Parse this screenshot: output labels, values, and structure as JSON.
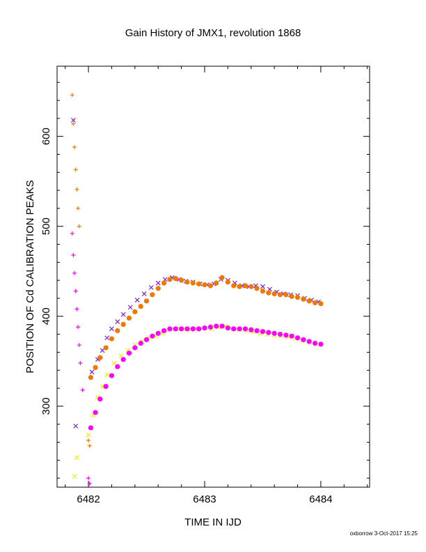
{
  "chart_data": {
    "type": "scatter",
    "title": "Gain History of JMX1, revolution 1868",
    "xlabel": "TIME IN IJD",
    "ylabel": "POSITION OF Cd CALIBRATION PEAKS",
    "xlim": [
      6481.73,
      6484.42
    ],
    "ylim": [
      210,
      678
    ],
    "x_ticks": [
      6482,
      6483,
      6484
    ],
    "y_ticks": [
      300,
      400,
      500,
      600
    ],
    "x_tick_labels": [
      "6482",
      "6483",
      "6484"
    ],
    "y_tick_labels": [
      "300",
      "400",
      "500",
      "600"
    ],
    "minor_ticks": true,
    "grid": false,
    "legend": "none",
    "footer": "oxborrow  3-Oct-2017 15:25",
    "colors": {
      "purple_scatter": "#7a1fd6",
      "orange_fit": "#f07800",
      "yellow_scatter": "#f0f000",
      "magenta_fit": "#ff00ff",
      "axes": "#000000"
    },
    "series": [
      {
        "marker": "x",
        "color": "#7a1fd6",
        "x": [
          6481.87,
          6481.89,
          6482.03,
          6482.08,
          6482.12,
          6482.16,
          6482.2,
          6482.25,
          6482.3,
          6482.36,
          6482.42,
          6482.48,
          6482.54,
          6482.6,
          6482.66,
          6482.72,
          6482.78,
          6482.84,
          6482.9,
          6482.96,
          6483.02,
          6483.08,
          6483.14,
          6483.2,
          6483.26,
          6483.32,
          6483.38,
          6483.44,
          6483.5,
          6483.56,
          6483.62,
          6483.68,
          6483.74,
          6483.8,
          6483.86,
          6483.92,
          6483.98
        ],
        "y": [
          618,
          278,
          338,
          352,
          362,
          376,
          386,
          394,
          402,
          410,
          418,
          425,
          432,
          437,
          441,
          443,
          441,
          439,
          438,
          436,
          435,
          436,
          441,
          440,
          437,
          434,
          433,
          434,
          433,
          430,
          427,
          425,
          424,
          423,
          420,
          418,
          416
        ]
      },
      {
        "marker": "+",
        "color": "#f07800",
        "x": [
          6481.86,
          6481.87,
          6481.88,
          6481.89,
          6481.9,
          6481.91,
          6481.92,
          6482.0,
          6482.01
        ],
        "y": [
          646,
          614,
          588,
          563,
          541,
          520,
          500,
          262,
          256
        ],
        "fit": {
          "x": [
            6482.02,
            6482.06,
            6482.1,
            6482.15,
            6482.2,
            6482.25,
            6482.3,
            6482.35,
            6482.4,
            6482.45,
            6482.5,
            6482.55,
            6482.6,
            6482.65,
            6482.7,
            6482.75,
            6482.8,
            6482.85,
            6482.9,
            6482.95,
            6483.0,
            6483.05,
            6483.1,
            6483.15,
            6483.2,
            6483.25,
            6483.3,
            6483.35,
            6483.4,
            6483.45,
            6483.5,
            6483.55,
            6483.6,
            6483.65,
            6483.7,
            6483.75,
            6483.8,
            6483.85,
            6483.9,
            6483.95,
            6484.0
          ],
          "y": [
            332,
            343,
            354,
            365,
            375,
            384,
            391,
            398,
            405,
            411,
            417,
            424,
            431,
            437,
            441,
            442,
            440,
            438,
            437,
            436,
            435,
            434,
            437,
            443,
            438,
            434,
            433,
            434,
            433,
            431,
            428,
            426,
            425,
            424,
            424,
            422,
            421,
            419,
            417,
            415,
            414
          ]
        }
      },
      {
        "marker": "x",
        "color": "#f0f000",
        "x": [
          6481.88,
          6481.9,
          6482.0,
          6482.04,
          6482.08,
          6482.12,
          6482.16,
          6482.22,
          6482.28,
          6482.34,
          6482.4,
          6482.46,
          6482.52,
          6482.58,
          6482.64,
          6482.7,
          6482.76,
          6482.82,
          6482.88,
          6482.94,
          6483.0,
          6483.06,
          6483.12,
          6483.18,
          6483.24,
          6483.3,
          6483.36,
          6483.42,
          6483.48,
          6483.54,
          6483.6,
          6483.66,
          6483.72,
          6483.78,
          6483.84,
          6483.9,
          6483.96
        ],
        "y": [
          222,
          243,
          268,
          290,
          310,
          322,
          335,
          348,
          356,
          362,
          368,
          372,
          376,
          378,
          381,
          385,
          386,
          386,
          385,
          386,
          387,
          386,
          388,
          389,
          386,
          385,
          384,
          383,
          381,
          380,
          379,
          378,
          377,
          375,
          373,
          371,
          369
        ]
      },
      {
        "marker": "+",
        "color": "#ff00ff",
        "x": [
          6481.86,
          6481.87,
          6481.88,
          6481.89,
          6481.9,
          6481.91,
          6481.92,
          6481.93,
          6481.95,
          6482.0,
          6482.01
        ],
        "y": [
          492,
          468,
          448,
          428,
          408,
          388,
          368,
          348,
          318,
          220,
          214
        ],
        "fit": {
          "x": [
            6482.02,
            6482.06,
            6482.1,
            6482.15,
            6482.2,
            6482.25,
            6482.3,
            6482.35,
            6482.4,
            6482.45,
            6482.5,
            6482.55,
            6482.6,
            6482.65,
            6482.7,
            6482.75,
            6482.8,
            6482.85,
            6482.9,
            6482.95,
            6483.0,
            6483.05,
            6483.1,
            6483.15,
            6483.2,
            6483.25,
            6483.3,
            6483.35,
            6483.4,
            6483.45,
            6483.5,
            6483.55,
            6483.6,
            6483.65,
            6483.7,
            6483.75,
            6483.8,
            6483.85,
            6483.9,
            6483.95,
            6484.0
          ],
          "y": [
            276,
            293,
            308,
            322,
            334,
            344,
            352,
            359,
            365,
            370,
            374,
            378,
            381,
            384,
            386,
            386,
            386,
            386,
            386,
            386,
            387,
            388,
            389,
            389,
            387,
            386,
            386,
            386,
            385,
            384,
            383,
            382,
            381,
            380,
            379,
            378,
            376,
            374,
            372,
            370,
            369
          ]
        }
      }
    ]
  }
}
